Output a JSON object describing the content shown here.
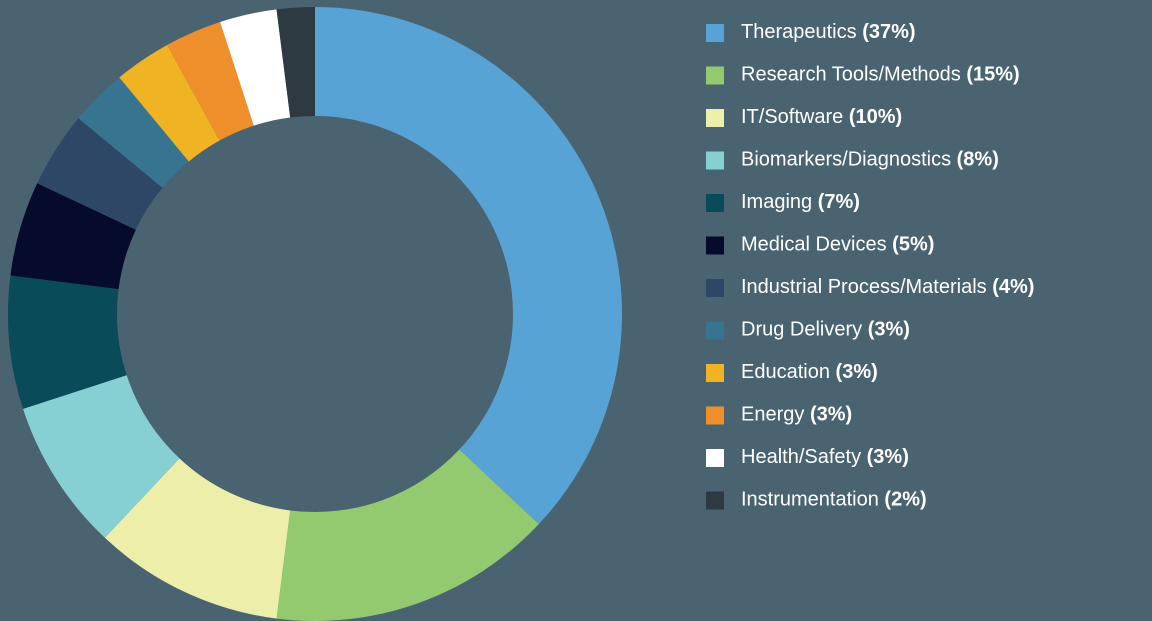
{
  "chart_data": {
    "type": "donut",
    "categories": [
      "Therapeutics",
      "Research Tools/Methods",
      "IT/Software",
      "Biomarkers/Diagnostics",
      "Imaging",
      "Medical Devices",
      "Industrial Process/Materials",
      "Drug Delivery",
      "Education",
      "Energy",
      "Health/Safety",
      "Instrumentation"
    ],
    "values": [
      37,
      15,
      10,
      8,
      7,
      5,
      4,
      3,
      3,
      3,
      3,
      2
    ],
    "value_labels": [
      "(37%)",
      "(15%)",
      "(10%)",
      "(8%)",
      "(7%)",
      "(5%)",
      "(4%)",
      "(3%)",
      "(3%)",
      "(3%)",
      "(3%)",
      "(2%)"
    ],
    "colors": [
      "#57a3d6",
      "#93c96f",
      "#eceeaa",
      "#86d0d4",
      "#0a4b5a",
      "#060a2b",
      "#2f4766",
      "#36748f",
      "#f0b323",
      "#ee8f2b",
      "#ffffff",
      "#2e3a42"
    ],
    "legend": "right"
  }
}
